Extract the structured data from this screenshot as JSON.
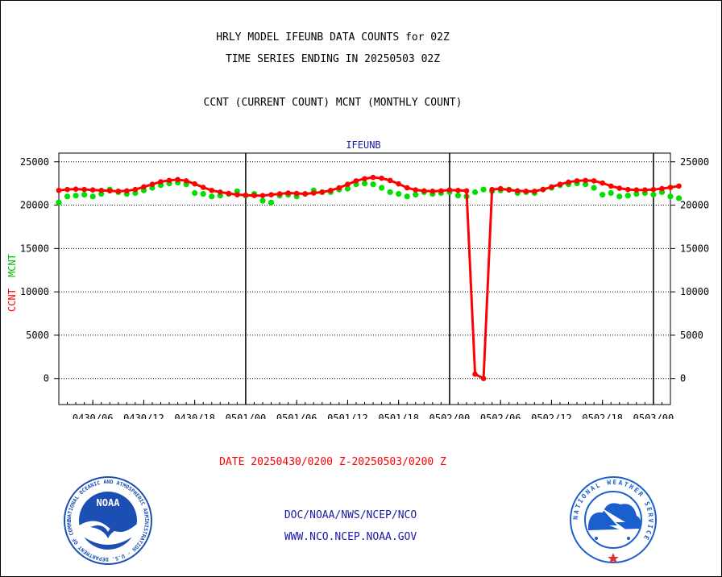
{
  "header": {
    "title": "HRLY MODEL IFEUNB DATA COUNTS for 02Z",
    "subtitle": "TIME SERIES ENDING IN 20250503 02Z",
    "description": "CCNT (CURRENT COUNT) MCNT (MONTHLY COUNT)"
  },
  "chart_data": {
    "type": "line",
    "title": "IFEUNB",
    "ylabel_ccnt": "CCNT",
    "ylabel_mcnt": "MCNT",
    "xlabel": "DATE 20250430/0200 Z-20250503/0200 Z",
    "ylim": [
      -3000,
      26000
    ],
    "yticks": [
      0,
      5000,
      10000,
      15000,
      20000,
      25000
    ],
    "x_range_hours": [
      0,
      72
    ],
    "x_start": "20250430/0200 Z",
    "xtick_labels": [
      "0430/06",
      "0430/12",
      "0430/18",
      "0501/00",
      "0501/06",
      "0501/12",
      "0501/18",
      "0502/00",
      "0502/06",
      "0502/12",
      "0502/18",
      "0503/00"
    ],
    "xtick_hours": [
      4,
      10,
      16,
      22,
      28,
      34,
      40,
      46,
      52,
      58,
      64,
      70
    ],
    "day_boundaries_hours": [
      22,
      46,
      70
    ],
    "grid": "horizontal dotted",
    "series": [
      {
        "name": "CCNT",
        "color": "#ff0000",
        "values": [
          21700,
          21800,
          21850,
          21800,
          21750,
          21700,
          21650,
          21600,
          21650,
          21800,
          22100,
          22400,
          22700,
          22850,
          22950,
          22800,
          22450,
          22050,
          21700,
          21500,
          21350,
          21200,
          21150,
          21100,
          21100,
          21200,
          21300,
          21400,
          21350,
          21300,
          21400,
          21500,
          21700,
          22000,
          22400,
          22800,
          23050,
          23200,
          23100,
          22850,
          22450,
          22000,
          21750,
          21650,
          21600,
          21650,
          21750,
          21700,
          21650,
          500,
          0,
          21800,
          21900,
          21750,
          21650,
          21600,
          21600,
          21800,
          22100,
          22400,
          22650,
          22800,
          22850,
          22800,
          22550,
          22200,
          21950,
          21800,
          21750,
          21750,
          21800,
          21900,
          22050,
          22200
        ]
      },
      {
        "name": "MCNT",
        "color": "#00e000",
        "values": [
          20300,
          21000,
          21100,
          21200,
          21000,
          21300,
          21800,
          21500,
          21300,
          21400,
          21700,
          22000,
          22300,
          22500,
          22600,
          22400,
          21400,
          21300,
          21000,
          21100,
          21300,
          21600,
          21100,
          21300,
          20500,
          20300,
          21100,
          21200,
          21000,
          21300,
          21700,
          21500,
          21500,
          21800,
          21900,
          22400,
          22500,
          22400,
          22000,
          21500,
          21300,
          21000,
          21200,
          21500,
          21300,
          21400,
          21500,
          21100,
          21000,
          21500,
          21800,
          21600,
          21700,
          21800,
          21400,
          21500,
          21400,
          21800,
          22000,
          22300,
          22400,
          22500,
          22400,
          22000,
          21200,
          21400,
          21000,
          21100,
          21300,
          21400,
          21200,
          21500,
          21000,
          20800
        ]
      }
    ]
  },
  "footer": {
    "line1": "DOC/NOAA/NWS/NCEP/NCO",
    "line2": "WWW.NCO.NCEP.NOAA.GOV",
    "noaa_logo_text": "NOAA",
    "noaa_ring_text": "NATIONAL OCEANIC AND ATMOSPHERIC ADMINISTRATION · U.S. DEPARTMENT OF COMMERCE",
    "nws_ring_text": "NATIONAL WEATHER SERVICE"
  },
  "colors": {
    "ccnt": "#ff0000",
    "mcnt": "#00e000",
    "footer": "#1a1aa6",
    "noaa_blue": "#1c4fb4",
    "nws_blue": "#1b5fcf"
  }
}
